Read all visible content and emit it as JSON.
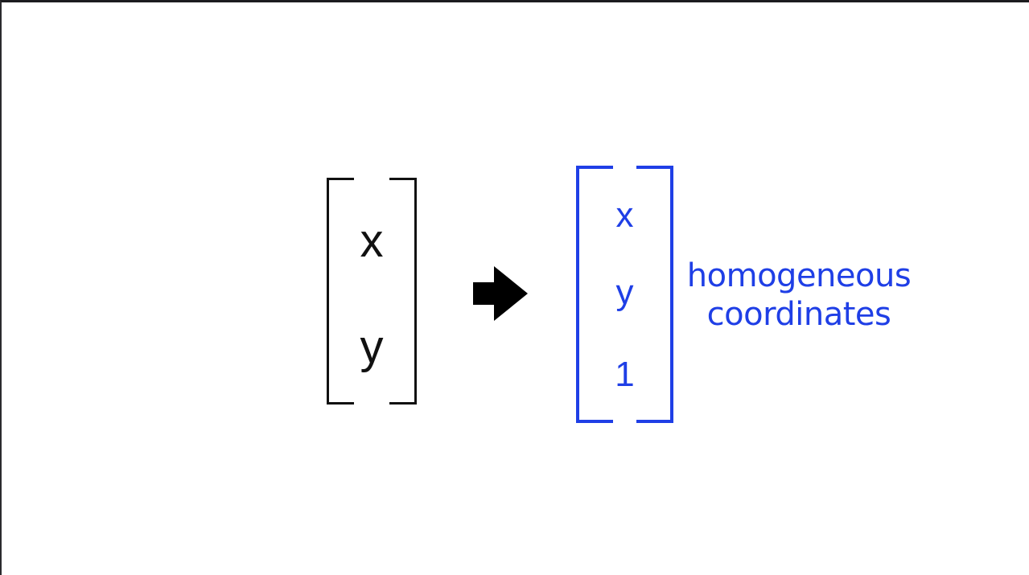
{
  "left_vector": {
    "entries": [
      "x",
      "y"
    ],
    "color": "#111111"
  },
  "arrow": {
    "icon": "right-arrow-icon",
    "color": "#000000"
  },
  "right_vector": {
    "entries": [
      "x",
      "y",
      "1"
    ],
    "color": "#1f3fe6"
  },
  "annotation": {
    "line1": "homogeneous",
    "line2": "coordinates",
    "color": "#1f3fe6"
  }
}
